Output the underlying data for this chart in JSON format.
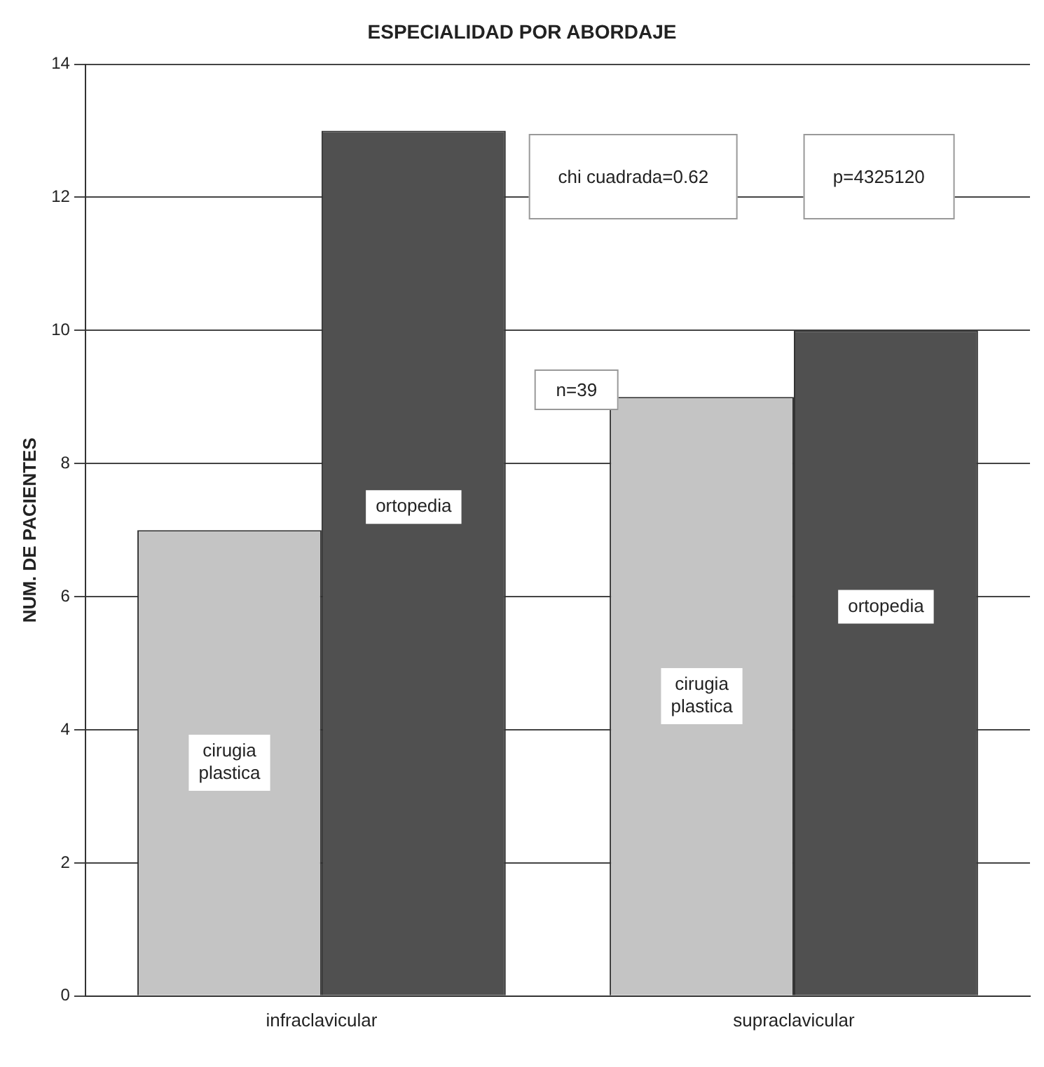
{
  "chart_data": {
    "type": "bar",
    "title": "ESPECIALIDAD POR ABORDAJE",
    "ylabel": "NUM. DE PACIENTES",
    "categories": [
      "infraclavicular",
      "supraclavicular"
    ],
    "series": [
      {
        "name": "cirugia plastica",
        "color": "#c4c4c4",
        "values": [
          7,
          9
        ]
      },
      {
        "name": "ortopedia",
        "color": "#505050",
        "values": [
          13,
          10
        ]
      }
    ],
    "ylim": [
      0,
      14
    ],
    "yticks": [
      0,
      2,
      4,
      6,
      8,
      10,
      12,
      14
    ],
    "grid": "y",
    "legend": false,
    "annotations": [
      "chi cuadrada=0.62",
      "p=4325120",
      "n=39"
    ]
  }
}
